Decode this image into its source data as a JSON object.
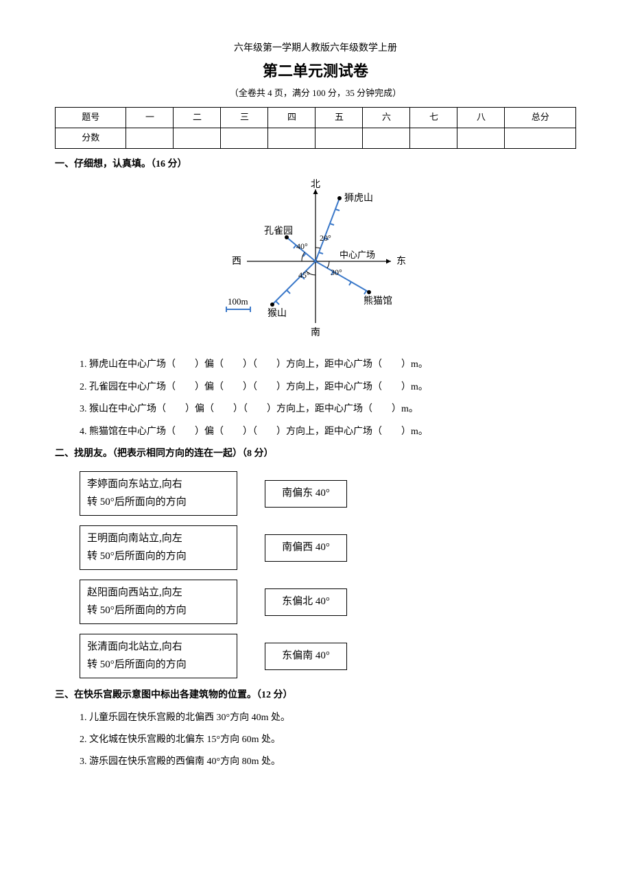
{
  "header": {
    "subtitle": "六年级第一学期人教版六年级数学上册",
    "title": "第二单元测试卷",
    "meta": "（全卷共 4 页，满分 100 分，35 分钟完成）"
  },
  "score_table": {
    "row1": [
      "题号",
      "一",
      "二",
      "三",
      "四",
      "五",
      "六",
      "七",
      "八",
      "总分"
    ],
    "row2": [
      "分数",
      "",
      "",
      "",
      "",
      "",
      "",
      "",
      "",
      ""
    ]
  },
  "section1": {
    "title": "一、仔细想，认真填。（16 分）",
    "diagram": {
      "labels": {
        "north": "北",
        "south": "南",
        "east": "东",
        "west": "西",
        "center": "中心广场",
        "lion": "狮虎山",
        "peacock": "孔雀园",
        "monkey": "猴山",
        "panda": "熊猫馆",
        "scale": "100m",
        "angle_20": "20°",
        "angle_40": "40°",
        "angle_45": "45°",
        "angle_30": "30°"
      },
      "colors": {
        "axis": "#000000",
        "line": "#3a78c9",
        "text": "#000000"
      }
    },
    "items": [
      "1. 狮虎山在中心广场（　　）偏（　　）（　　）方向上，距中心广场（　　）m。",
      "2. 孔雀园在中心广场（　　）偏（　　）（　　）方向上，距中心广场（　　）m。",
      "3. 猴山在中心广场（　　）偏（　　）（　　）方向上，距中心广场（　　）m。",
      "4. 熊猫馆在中心广场（　　）偏（　　）（　　）方向上，距中心广场（　　）m。"
    ]
  },
  "section2": {
    "title": "二、找朋友。（把表示相同方向的连在一起）（8 分）",
    "left": [
      "李婷面向东站立,向右\n转 50°后所面向的方向",
      "王明面向南站立,向左\n转 50°后所面向的方向",
      "赵阳面向西站立,向左\n转 50°后所面向的方向",
      "张清面向北站立,向右\n转 50°后所面向的方向"
    ],
    "right": [
      "南偏东 40°",
      "南偏西 40°",
      "东偏北 40°",
      "东偏南 40°"
    ]
  },
  "section3": {
    "title": "三、在快乐宫殿示意图中标出各建筑物的位置。（12 分）",
    "items": [
      "1. 儿童乐园在快乐宫殿的北偏西 30°方向 40m 处。",
      "2. 文化城在快乐宫殿的北偏东 15°方向 60m 处。",
      "3. 游乐园在快乐宫殿的西偏南 40°方向 80m 处。"
    ]
  }
}
